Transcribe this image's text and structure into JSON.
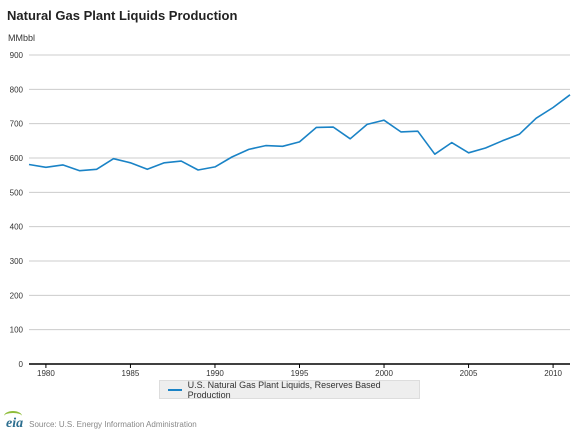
{
  "title": "Natural Gas Plant Liquids Production",
  "unit_label": "MMbbl",
  "source": "Source: U.S. Energy Information Administration",
  "logo_text": "eia",
  "colors": {
    "series": "#1a83c6",
    "grid": "#cccccc",
    "axis": "#000000",
    "logo": "#2c6e8f",
    "logo_arc": "#8fbd3a"
  },
  "chart_data": {
    "type": "line",
    "title": "Natural Gas Plant Liquids Production",
    "ylabel": "MMbbl",
    "xlabel": "",
    "xlim": [
      1979,
      2011
    ],
    "ylim": [
      0,
      900
    ],
    "yticks": [
      0,
      100,
      200,
      300,
      400,
      500,
      600,
      700,
      800,
      900
    ],
    "xticks": [
      1980,
      1985,
      1990,
      1995,
      2000,
      2005,
      2010
    ],
    "grid": true,
    "legend_position": "bottom",
    "series": [
      {
        "name": "U.S. Natural Gas Plant Liquids, Reserves Based Production",
        "color": "#1a83c6",
        "x": [
          1979,
          1980,
          1981,
          1982,
          1983,
          1984,
          1985,
          1986,
          1987,
          1988,
          1989,
          1990,
          1991,
          1992,
          1993,
          1994,
          1995,
          1996,
          1997,
          1998,
          1999,
          2000,
          2001,
          2002,
          2003,
          2004,
          2005,
          2006,
          2007,
          2008,
          2009,
          2010,
          2011
        ],
        "y": [
          581,
          573,
          580,
          563,
          567,
          598,
          586,
          567,
          586,
          591,
          565,
          574,
          603,
          625,
          636,
          634,
          647,
          689,
          690,
          656,
          698,
          710,
          676,
          678,
          611,
          645,
          615,
          629,
          650,
          669,
          716,
          747,
          784
        ]
      }
    ]
  }
}
